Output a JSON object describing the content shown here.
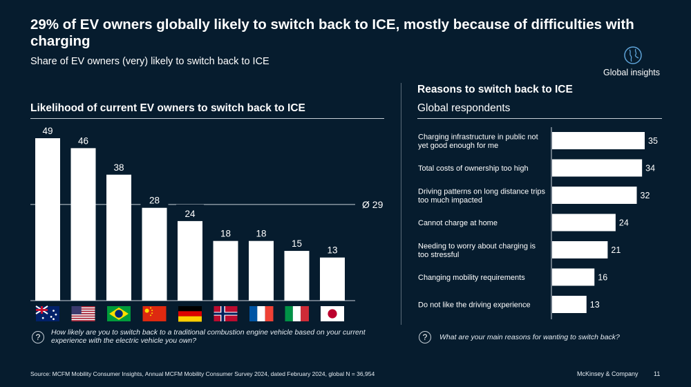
{
  "header": {
    "title": "29% of EV owners globally likely to switch back to ICE, mostly because of difficulties with charging",
    "subtitle": "Share of EV owners (very) likely to switch back to ICE",
    "badge_label": "Global insights",
    "badge_icon": "globe-icon"
  },
  "left": {
    "title": "Likelihood of current EV owners to switch back to ICE",
    "question": "How likely are you to switch back to a traditional combustion engine vehicle based on your current experience with the electric vehicle you own?"
  },
  "right": {
    "title": "Reasons to switch back to ICE",
    "subtitle": "Global respondents",
    "question": "What are your main reasons for wanting to switch back?"
  },
  "footer": {
    "source": "Source: MCFM Mobility Consumer Insights, Annual MCFM Mobility Consumer Survey 2024, dated February 2024, global N = 36,954",
    "brand": "McKinsey & Company",
    "page": "11"
  },
  "colors": {
    "background": "#061c2e",
    "bar": "#ffffff",
    "text": "#ffffff"
  },
  "chart_data": [
    {
      "type": "bar",
      "title": "Likelihood of current EV owners to switch back to ICE",
      "categories": [
        "Australia",
        "United States",
        "Brazil",
        "China",
        "Germany",
        "Norway",
        "France",
        "Italy",
        "Japan"
      ],
      "category_icons": [
        "flag-australia",
        "flag-usa",
        "flag-brazil",
        "flag-china",
        "flag-germany",
        "flag-norway",
        "flag-france",
        "flag-italy",
        "flag-japan"
      ],
      "values": [
        49,
        46,
        38,
        28,
        24,
        18,
        18,
        15,
        13
      ],
      "average": 29,
      "average_label": "Ø 29",
      "ylim": [
        0,
        52
      ]
    },
    {
      "type": "bar",
      "orientation": "horizontal",
      "title": "Reasons to switch back to ICE",
      "categories": [
        "Charging infrastructure in public not yet good enough for me",
        "Total costs of ownership too high",
        "Driving patterns on long distance trips too much impacted",
        "Cannot charge at home",
        "Needing to worry about charging is too stressful",
        "Changing mobility requirements",
        "Do not like the driving experience"
      ],
      "values": [
        35,
        34,
        32,
        24,
        21,
        16,
        13
      ],
      "xlim": [
        0,
        35
      ]
    }
  ]
}
